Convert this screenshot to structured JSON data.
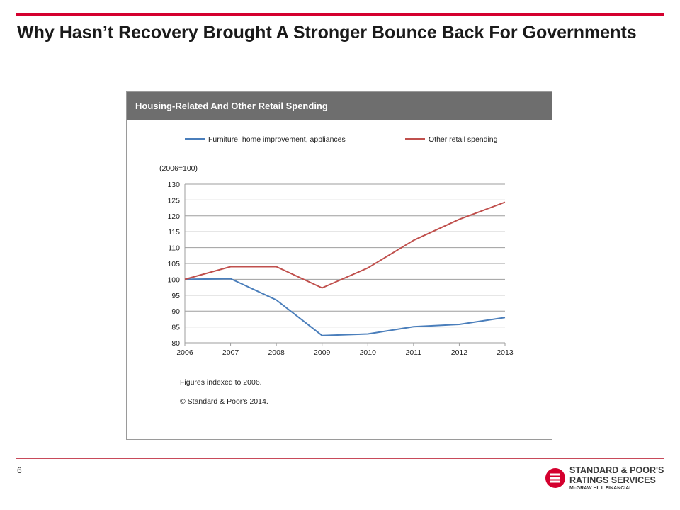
{
  "slide": {
    "title": "Why Hasn’t Recovery Brought A Stronger Bounce Back For Governments",
    "page_number": "6"
  },
  "logo": {
    "line1": "STANDARD & POOR'S",
    "line2": "RATINGS SERVICES",
    "line3": "McGRAW HILL FINANCIAL"
  },
  "chart_data": {
    "type": "line",
    "title": "Housing-Related And Other Retail Spending",
    "ylabel": "(2006=100)",
    "x": [
      "2006",
      "2007",
      "2008",
      "2009",
      "2010",
      "2011",
      "2012",
      "2013"
    ],
    "ylim": [
      80,
      130
    ],
    "yticks": [
      80,
      85,
      90,
      95,
      100,
      105,
      110,
      115,
      120,
      125,
      130
    ],
    "grid": true,
    "legend_position": "top",
    "series": [
      {
        "name": "Furniture, home improvement, appliances",
        "color": "#4a7ebb",
        "values": [
          100,
          100.2,
          93.5,
          82.3,
          82.8,
          85.1,
          85.8,
          88
        ]
      },
      {
        "name": "Other retail spending",
        "color": "#c0504d",
        "values": [
          100,
          104,
          104,
          97.3,
          103.6,
          112.3,
          118.9,
          124.3
        ]
      }
    ],
    "notes": [
      "Figures indexed to 2006.",
      "© Standard & Poor's 2014."
    ]
  }
}
